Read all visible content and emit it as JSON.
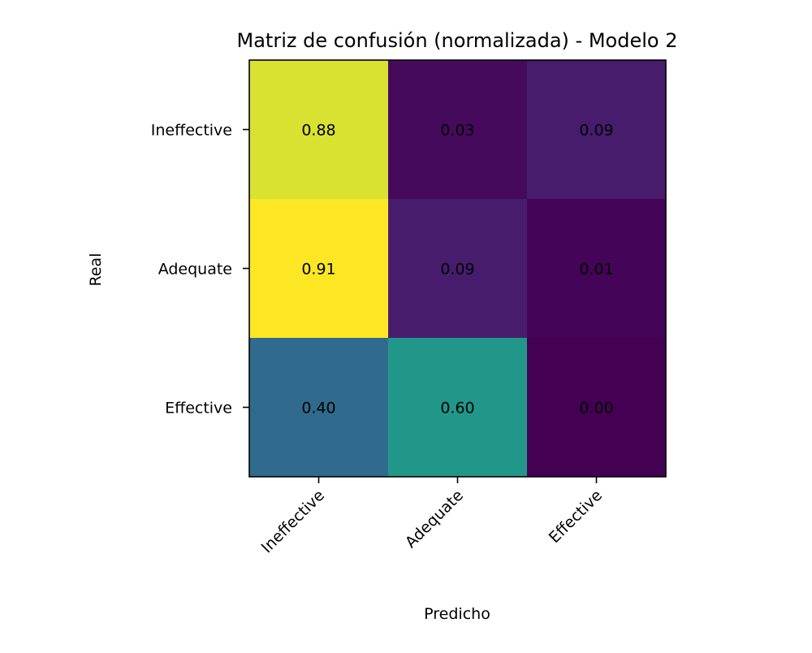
{
  "chart_data": {
    "type": "heatmap",
    "title": "Matriz de confusión (normalizada) - Modelo 2",
    "xlabel": "Predicho",
    "ylabel": "Real",
    "row_labels": [
      "Ineffective",
      "Adequate",
      "Effective"
    ],
    "col_labels": [
      "Ineffective",
      "Adequate",
      "Effective"
    ],
    "values": [
      [
        0.88,
        0.03,
        0.09
      ],
      [
        0.91,
        0.09,
        0.01
      ],
      [
        0.4,
        0.6,
        0.0
      ]
    ],
    "value_labels": [
      [
        "0.88",
        "0.03",
        "0.09"
      ],
      [
        "0.91",
        "0.09",
        "0.01"
      ],
      [
        "0.40",
        "0.60",
        "0.00"
      ]
    ],
    "colormap": "viridis",
    "color_range": [
      0.0,
      0.91
    ],
    "x_tick_rotation": "45 degrees",
    "grid": false,
    "legend": "none"
  }
}
